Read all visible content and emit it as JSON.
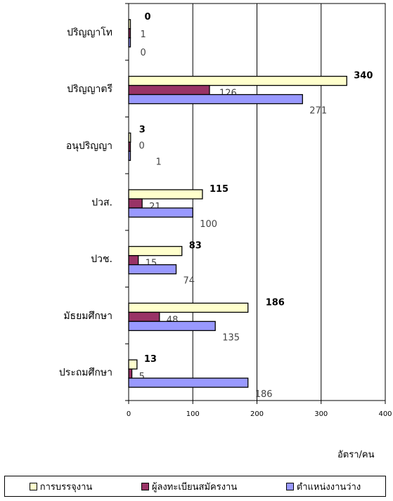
{
  "chart_data": {
    "type": "bar",
    "orientation": "horizontal",
    "categories": [
      "ปริญญาโท",
      "ปริญญาตรี",
      "อนุปริญญา",
      "ปวส.",
      "ปวช.",
      "มัธยมศึกษา",
      "ประถมศึกษา"
    ],
    "series": [
      {
        "name": "การบรรจุงาน",
        "values": [
          0,
          340,
          3,
          115,
          83,
          186,
          13
        ],
        "color": "#ffffcc"
      },
      {
        "name": "ผู้ลงทะเบียนสมัครงาน",
        "values": [
          1,
          126,
          0,
          21,
          15,
          48,
          5
        ],
        "color": "#993366"
      },
      {
        "name": "ตำแหน่งงานว่าง",
        "values": [
          0,
          271,
          1,
          100,
          74,
          135,
          186
        ],
        "color": "#9999ff"
      }
    ],
    "xlim": [
      0,
      400
    ],
    "xticks": [
      0,
      100,
      200,
      300,
      400
    ],
    "xlabel": "อัตรา/คน",
    "grid": true,
    "legend_position": "bottom"
  }
}
